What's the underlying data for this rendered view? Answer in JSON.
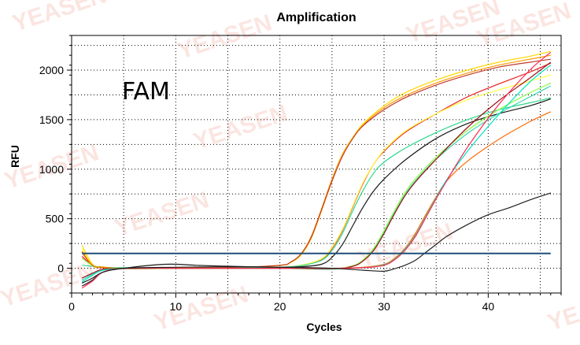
{
  "chart_data": {
    "type": "line",
    "title": "Amplification",
    "xlabel": "Cycles",
    "ylabel": "RFU",
    "annotation": "FAM",
    "watermark": "YEASEN",
    "xlim": [
      0,
      47
    ],
    "ylim": [
      -250,
      2350
    ],
    "xticks": [
      0,
      10,
      20,
      30,
      40
    ],
    "yticks": [
      0,
      500,
      1000,
      1500,
      2000
    ],
    "grid": true,
    "legend": "none",
    "threshold": {
      "value": 150,
      "x_start": 1,
      "x_end": 46,
      "color": "#1f4e79"
    },
    "series": [
      {
        "color": "#ff9900",
        "x": [
          1,
          2,
          3,
          5,
          10,
          15,
          20,
          21,
          22,
          23,
          24,
          25,
          26,
          27,
          28,
          30,
          32,
          35,
          38,
          41,
          44,
          46
        ],
        "y": [
          170,
          30,
          10,
          0,
          5,
          5,
          30,
          60,
          140,
          320,
          600,
          900,
          1150,
          1320,
          1450,
          1620,
          1740,
          1870,
          1970,
          2050,
          2110,
          2150
        ]
      },
      {
        "color": "#ffd700",
        "x": [
          1,
          2,
          3,
          5,
          10,
          15,
          20,
          21,
          22,
          23,
          24,
          25,
          26,
          27,
          28,
          30,
          32,
          35,
          38,
          41,
          44,
          46
        ],
        "y": [
          230,
          40,
          15,
          0,
          8,
          6,
          28,
          55,
          130,
          300,
          580,
          880,
          1140,
          1320,
          1460,
          1640,
          1770,
          1900,
          2000,
          2080,
          2140,
          2190
        ]
      },
      {
        "color": "#c0392b",
        "x": [
          1,
          2,
          3,
          5,
          10,
          15,
          20,
          21,
          22,
          23,
          24,
          25,
          26,
          27,
          28,
          30,
          32,
          35,
          38,
          41,
          44,
          46
        ],
        "y": [
          160,
          25,
          5,
          -5,
          0,
          5,
          30,
          60,
          140,
          310,
          590,
          880,
          1130,
          1310,
          1440,
          1600,
          1720,
          1850,
          1950,
          2030,
          2080,
          2110
        ]
      },
      {
        "color": "#e91e1e",
        "x": [
          1,
          2,
          3,
          5,
          10,
          15,
          20,
          22,
          24,
          25,
          26,
          27,
          28,
          29,
          30,
          32,
          35,
          38,
          41,
          44,
          46
        ],
        "y": [
          120,
          30,
          10,
          0,
          0,
          0,
          10,
          30,
          90,
          200,
          380,
          620,
          860,
          1050,
          1180,
          1370,
          1560,
          1730,
          1860,
          1980,
          2070
        ]
      },
      {
        "color": "#ffff40",
        "x": [
          1,
          2,
          3,
          5,
          10,
          15,
          20,
          22,
          24,
          25,
          26,
          27,
          28,
          29,
          30,
          32,
          35,
          38,
          41,
          44,
          46
        ],
        "y": [
          200,
          30,
          10,
          0,
          0,
          0,
          10,
          30,
          95,
          210,
          390,
          630,
          870,
          1050,
          1190,
          1380,
          1560,
          1700,
          1800,
          1890,
          1950
        ]
      },
      {
        "color": "#2bd98a",
        "x": [
          1,
          2,
          3,
          5,
          10,
          15,
          20,
          22,
          24,
          25,
          26,
          27,
          28,
          29,
          30,
          32,
          35,
          38,
          41,
          44,
          46
        ],
        "y": [
          30,
          20,
          10,
          5,
          0,
          0,
          10,
          25,
          80,
          180,
          350,
          580,
          790,
          960,
          1070,
          1210,
          1370,
          1500,
          1600,
          1670,
          1720
        ]
      },
      {
        "color": "#1a1a1a",
        "x": [
          1,
          2,
          3,
          5,
          9,
          12,
          15,
          20,
          22,
          24,
          25,
          26,
          27,
          28,
          29,
          30,
          32,
          35,
          38,
          41,
          44,
          46
        ],
        "y": [
          -180,
          -120,
          -40,
          0,
          40,
          30,
          20,
          10,
          15,
          40,
          110,
          240,
          430,
          620,
          780,
          900,
          1090,
          1310,
          1460,
          1560,
          1640,
          1710
        ]
      },
      {
        "color": "#3cd6b0",
        "x": [
          1,
          2,
          3,
          5,
          10,
          15,
          20,
          25,
          27,
          28,
          29,
          30,
          31,
          32,
          33,
          35,
          38,
          41,
          44,
          46
        ],
        "y": [
          -120,
          -60,
          -20,
          0,
          0,
          0,
          0,
          -10,
          20,
          80,
          190,
          360,
          560,
          740,
          880,
          1100,
          1360,
          1560,
          1730,
          1840
        ]
      },
      {
        "color": "#80ff40",
        "x": [
          1,
          2,
          3,
          5,
          10,
          15,
          20,
          25,
          27,
          28,
          29,
          30,
          31,
          32,
          33,
          35,
          38,
          41,
          44,
          46
        ],
        "y": [
          100,
          30,
          10,
          0,
          0,
          0,
          0,
          -5,
          25,
          85,
          200,
          380,
          580,
          760,
          900,
          1120,
          1390,
          1600,
          1770,
          1870
        ]
      },
      {
        "color": "#a0101a",
        "x": [
          1,
          2,
          3,
          5,
          10,
          15,
          20,
          25,
          27,
          28,
          29,
          30,
          31,
          32,
          33,
          35,
          38,
          41,
          44,
          46
        ],
        "y": [
          -100,
          -50,
          -10,
          0,
          0,
          0,
          0,
          -5,
          20,
          75,
          180,
          350,
          550,
          730,
          870,
          1100,
          1420,
          1690,
          1920,
          2080
        ]
      },
      {
        "color": "#ff6a00",
        "x": [
          1,
          2,
          3,
          5,
          10,
          15,
          20,
          25,
          28,
          30,
          31,
          32,
          33,
          34,
          35,
          36,
          38,
          41,
          44,
          46
        ],
        "y": [
          170,
          30,
          10,
          0,
          0,
          0,
          0,
          0,
          10,
          40,
          100,
          200,
          350,
          540,
          720,
          880,
          1080,
          1300,
          1480,
          1580
        ]
      },
      {
        "color": "#00e5c0",
        "x": [
          1,
          2,
          3,
          5,
          10,
          15,
          20,
          25,
          28,
          30,
          31,
          32,
          33,
          34,
          35,
          36,
          38,
          41,
          44,
          46
        ],
        "y": [
          -140,
          -70,
          -20,
          0,
          0,
          0,
          0,
          0,
          5,
          35,
          90,
          190,
          330,
          520,
          710,
          890,
          1180,
          1550,
          1880,
          2050
        ]
      },
      {
        "color": "#ff2850",
        "x": [
          1,
          2,
          3,
          5,
          10,
          15,
          20,
          25,
          28,
          30,
          31,
          32,
          33,
          34,
          35,
          36,
          38,
          41,
          44,
          46
        ],
        "y": [
          -200,
          -130,
          -40,
          0,
          0,
          0,
          0,
          0,
          5,
          30,
          85,
          180,
          320,
          510,
          700,
          880,
          1220,
          1650,
          2000,
          2180
        ]
      },
      {
        "color": "#202020",
        "x": [
          1,
          2,
          3,
          5,
          10,
          15,
          20,
          25,
          28,
          30,
          31,
          32,
          33,
          34,
          35,
          36,
          38,
          40,
          42,
          44,
          46
        ],
        "y": [
          -150,
          -100,
          -40,
          0,
          10,
          15,
          10,
          0,
          -20,
          -30,
          -5,
          30,
          80,
          160,
          240,
          320,
          440,
          540,
          610,
          690,
          760
        ]
      }
    ]
  }
}
